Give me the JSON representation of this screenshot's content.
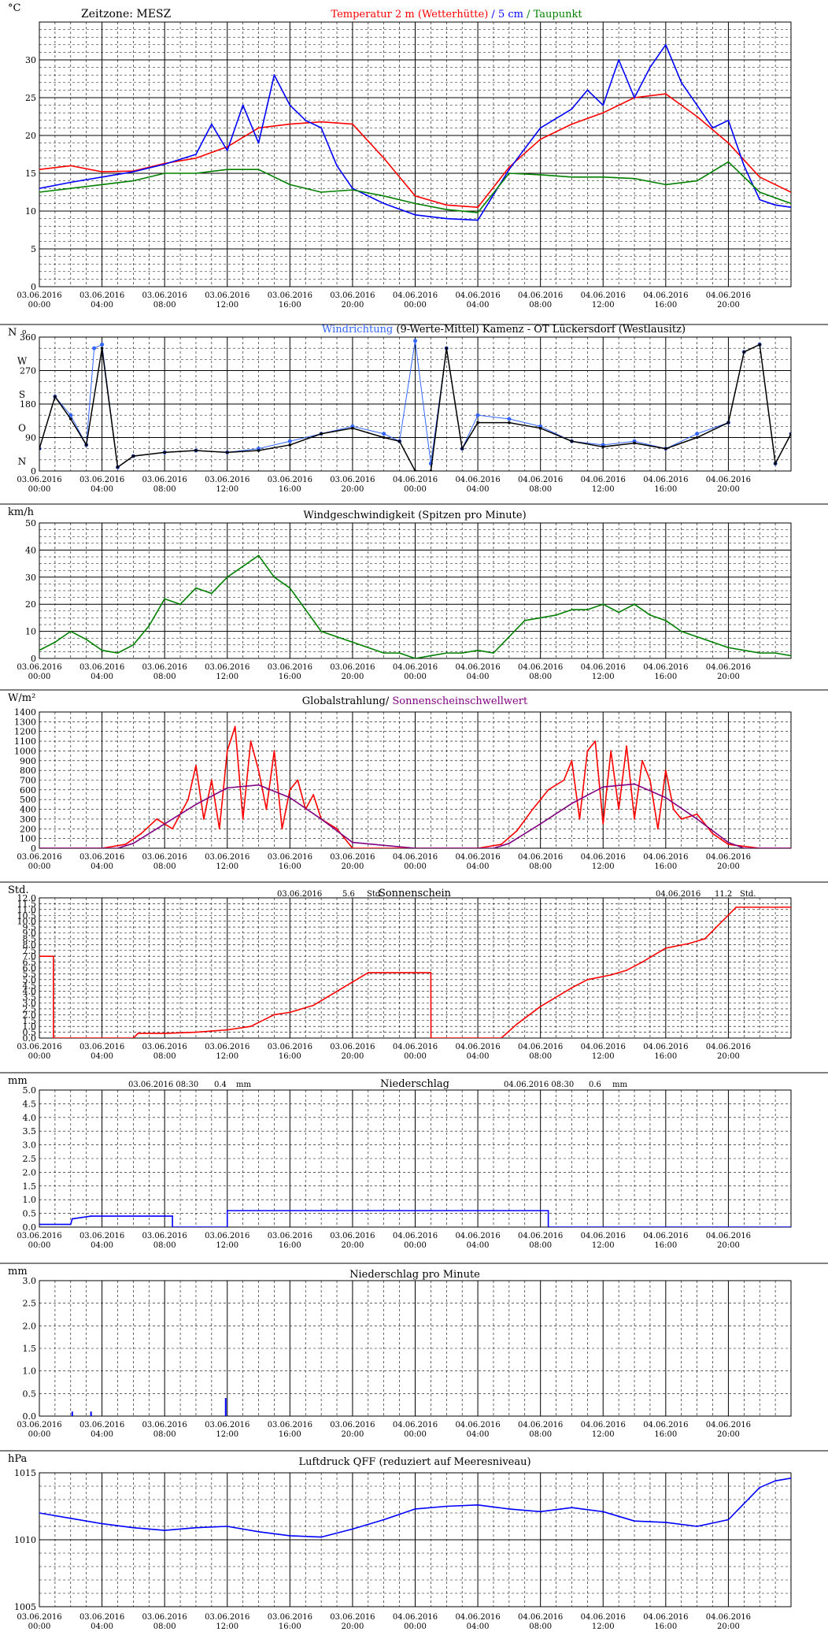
{
  "x_axis": {
    "dates": [
      "03.06.2016",
      "03.06.2016",
      "03.06.2016",
      "03.06.2016",
      "03.06.2016",
      "03.06.2016",
      "04.06.2016",
      "04.06.2016",
      "04.06.2016",
      "04.06.2016",
      "04.06.2016",
      "04.06.2016"
    ],
    "times": [
      "00:00",
      "04:00",
      "08:00",
      "12:00",
      "16:00",
      "20:00",
      "00:00",
      "04:00",
      "08:00",
      "12:00",
      "16:00",
      "20:00"
    ],
    "range_hours": [
      0,
      48
    ]
  },
  "panels": [
    {
      "id": "temperature",
      "unit": "°C",
      "header_left": "Zeitzone: MESZ",
      "title_parts": [
        {
          "text": "Temperatur 2 m (Wetterhütte)",
          "color": "#ff0000"
        },
        {
          "text": "  /  ",
          "color": "#0000ff"
        },
        {
          "text": "5 cm",
          "color": "#0000ff"
        },
        {
          "text": " / ",
          "color": "#008000"
        },
        {
          "text": "Taupunkt",
          "color": "#008000"
        }
      ]
    },
    {
      "id": "wind_direction",
      "unit": "N",
      "unit_suffix": "o",
      "title_parts": [
        {
          "text": "Windrichtung",
          "color": "#3366ff"
        },
        {
          "text": " (9-Werte-Mittel)",
          "color": "#000000"
        },
        {
          "text": "          Kamenz - OT Lückersdorf (Westlausitz)",
          "color": "#000000"
        }
      ],
      "compass_labels": [
        "W",
        "S",
        "O",
        "N"
      ]
    },
    {
      "id": "wind_speed",
      "unit": "km/h",
      "title_parts": [
        {
          "text": "Windgeschwindigkeit (Spitzen pro Minute)",
          "color": "#000000"
        }
      ]
    },
    {
      "id": "radiation",
      "unit": "W/m²",
      "title_parts": [
        {
          "text": "Globalstrahlung/ ",
          "color": "#000000"
        },
        {
          "text": "Sonnenscheinschwellwert",
          "color": "#800080"
        }
      ]
    },
    {
      "id": "sunshine",
      "unit": "Std.",
      "title_parts": [
        {
          "text": "Sonnenschein",
          "color": "#000000"
        }
      ],
      "day_totals": [
        {
          "date": "03.06.2016",
          "value": "5.6",
          "unit": "Std."
        },
        {
          "date": "04.06.2016",
          "value": "11.2",
          "unit": "Std."
        }
      ]
    },
    {
      "id": "precipitation",
      "unit": "mm",
      "title_parts": [
        {
          "text": "Niederschlag",
          "color": "#000000"
        }
      ],
      "day_totals": [
        {
          "date": "03.06.2016 08:30",
          "value": "0.4",
          "unit": "mm"
        },
        {
          "date": "04.06.2016 08:30",
          "value": "0.6",
          "unit": "mm"
        }
      ]
    },
    {
      "id": "precip_minute",
      "unit": "mm",
      "title_parts": [
        {
          "text": "Niederschlag pro Minute",
          "color": "#000000"
        }
      ]
    },
    {
      "id": "pressure",
      "unit": "hPa",
      "title_parts": [
        {
          "text": "Luftdruck QFF (reduziert auf Meeresniveau)",
          "color": "#000000"
        }
      ]
    }
  ],
  "chart_data": [
    {
      "type": "line",
      "title": "Temperatur 2 m (Wetterhütte) / 5 cm / Taupunkt",
      "ylabel": "°C",
      "ylim": [
        0,
        35
      ],
      "yticks": [
        0,
        5,
        10,
        15,
        20,
        25,
        30
      ],
      "grid": true,
      "series": [
        {
          "name": "Temperatur 2 m (Wetterhütte)",
          "color": "#ff0000",
          "x": [
            0,
            2,
            4,
            6,
            8,
            10,
            12,
            14,
            16,
            18,
            20,
            22,
            24,
            26,
            28,
            30,
            32,
            34,
            36,
            38,
            40,
            42,
            44,
            46,
            48
          ],
          "y": [
            15.5,
            16,
            15.2,
            15.3,
            16.3,
            17,
            18.5,
            21,
            21.5,
            21.8,
            21.5,
            17,
            12,
            10.8,
            10.5,
            15.8,
            19.5,
            21.5,
            23,
            25,
            25.5,
            22.5,
            19,
            14.5,
            12.5
          ]
        },
        {
          "name": "5 cm",
          "color": "#0000ff",
          "x": [
            0,
            2,
            4,
            6,
            8,
            10,
            11,
            12,
            13,
            14,
            15,
            16,
            17,
            18,
            19,
            20,
            22,
            24,
            26,
            28,
            30,
            32,
            34,
            35,
            36,
            37,
            38,
            39,
            40,
            41,
            42,
            43,
            44,
            45,
            46,
            47,
            48
          ],
          "y": [
            13,
            13.8,
            14.5,
            15.2,
            16.2,
            17.5,
            21.5,
            18,
            24,
            19,
            28,
            24,
            22,
            21,
            16,
            13,
            11,
            9.5,
            9,
            8.8,
            15.5,
            21,
            23.5,
            26,
            24,
            30,
            25,
            29,
            32,
            27,
            24,
            21,
            22,
            16,
            11.5,
            10.8,
            10.5
          ]
        },
        {
          "name": "Taupunkt",
          "color": "#008000",
          "x": [
            0,
            2,
            4,
            6,
            8,
            10,
            12,
            14,
            16,
            18,
            20,
            22,
            24,
            26,
            28,
            30,
            32,
            34,
            36,
            38,
            40,
            42,
            44,
            46,
            48
          ],
          "y": [
            12.5,
            13,
            13.5,
            14,
            15,
            15,
            15.5,
            15.5,
            13.5,
            12.5,
            12.8,
            12,
            11,
            10.2,
            9.8,
            15,
            14.8,
            14.5,
            14.5,
            14.3,
            13.5,
            14,
            16.5,
            12.5,
            11
          ]
        }
      ]
    },
    {
      "type": "scatter",
      "title": "Windrichtung (9-Werte-Mittel)",
      "ylabel": "N",
      "ylim": [
        0,
        360
      ],
      "yticks": [
        0,
        90,
        180,
        270,
        360
      ],
      "grid": true,
      "series": [
        {
          "name": "Windrichtung",
          "color": "#3366ff",
          "x": [
            0,
            1,
            2,
            3,
            3.5,
            4,
            5,
            6,
            8,
            10,
            12,
            14,
            16,
            18,
            20,
            22,
            23,
            24,
            25,
            26,
            27,
            28,
            30,
            32,
            34,
            36,
            38,
            40,
            42,
            44,
            45,
            46,
            47,
            48
          ],
          "y": [
            60,
            200,
            150,
            70,
            330,
            340,
            10,
            40,
            50,
            55,
            50,
            60,
            80,
            100,
            120,
            100,
            80,
            350,
            20,
            330,
            60,
            150,
            140,
            120,
            80,
            70,
            80,
            60,
            100,
            130,
            320,
            340,
            20,
            100
          ]
        },
        {
          "name": "9-Werte-Mittel",
          "color": "#000000",
          "x": [
            0,
            1,
            2,
            3,
            4,
            5,
            6,
            8,
            10,
            12,
            14,
            16,
            18,
            20,
            22,
            23,
            24,
            25,
            26,
            27,
            28,
            30,
            32,
            34,
            36,
            38,
            40,
            42,
            44,
            45,
            46,
            47,
            48
          ],
          "y": [
            60,
            200,
            140,
            70,
            330,
            10,
            40,
            50,
            55,
            50,
            55,
            70,
            100,
            115,
            90,
            80,
            0,
            0,
            330,
            60,
            130,
            130,
            115,
            80,
            65,
            75,
            60,
            90,
            130,
            320,
            340,
            20,
            100
          ]
        }
      ]
    },
    {
      "type": "line",
      "title": "Windgeschwindigkeit (Spitzen pro Minute)",
      "ylabel": "km/h",
      "ylim": [
        0,
        50
      ],
      "yticks": [
        0,
        10,
        20,
        30,
        40,
        50
      ],
      "grid": true,
      "series": [
        {
          "name": "Windgeschwindigkeit",
          "color": "#008000",
          "x": [
            0,
            1,
            2,
            3,
            4,
            5,
            6,
            7,
            8,
            9,
            10,
            11,
            12,
            13,
            14,
            15,
            16,
            17,
            18,
            19,
            20,
            21,
            22,
            23,
            24,
            25,
            26,
            27,
            28,
            29,
            30,
            31,
            32,
            33,
            34,
            35,
            36,
            37,
            38,
            39,
            40,
            41,
            42,
            43,
            44,
            45,
            46,
            47,
            48
          ],
          "y": [
            3,
            6,
            10,
            7,
            3,
            2,
            5,
            12,
            22,
            20,
            26,
            24,
            30,
            34,
            38,
            30,
            26,
            18,
            10,
            8,
            6,
            4,
            2,
            2,
            0,
            1,
            2,
            2,
            3,
            2,
            8,
            14,
            15,
            16,
            18,
            18,
            20,
            17,
            20,
            16,
            14,
            10,
            8,
            6,
            4,
            3,
            2,
            2,
            1
          ]
        }
      ]
    },
    {
      "type": "line",
      "title": "Globalstrahlung/ Sonnenscheinschwellwert",
      "ylabel": "W/m²",
      "ylim": [
        0,
        1400
      ],
      "yticks": [
        0,
        100,
        200,
        300,
        400,
        500,
        600,
        700,
        800,
        900,
        1000,
        1100,
        1200,
        1300,
        1400
      ],
      "grid": true,
      "series": [
        {
          "name": "Globalstrahlung",
          "color": "#ff0000",
          "x": [
            0,
            4,
            5.5,
            6.5,
            7.5,
            8.5,
            9.5,
            10,
            10.5,
            11,
            11.5,
            12,
            12.5,
            13,
            13.5,
            14,
            14.5,
            15,
            15.5,
            16,
            16.5,
            17,
            17.5,
            18,
            19,
            20,
            24,
            28,
            29.5,
            30.5,
            31.5,
            32.5,
            33.5,
            34,
            34.5,
            35,
            35.5,
            36,
            36.5,
            37,
            37.5,
            38,
            38.5,
            39,
            39.5,
            40,
            40.5,
            41,
            42,
            43,
            44,
            46,
            48
          ],
          "y": [
            0,
            0,
            40,
            150,
            300,
            200,
            500,
            850,
            300,
            700,
            200,
            1000,
            1250,
            300,
            1100,
            800,
            400,
            1000,
            200,
            600,
            700,
            400,
            550,
            300,
            200,
            0,
            0,
            0,
            40,
            180,
            400,
            600,
            700,
            900,
            300,
            1000,
            1100,
            250,
            1000,
            400,
            1050,
            300,
            900,
            700,
            200,
            800,
            400,
            300,
            350,
            150,
            40,
            0,
            0
          ]
        },
        {
          "name": "Sonnenscheinschwellwert",
          "color": "#800080",
          "x": [
            0,
            5,
            6,
            8,
            10,
            12,
            14,
            16,
            18,
            20,
            24,
            29,
            30,
            32,
            34,
            36,
            38,
            40,
            42,
            44,
            45,
            48
          ],
          "y": [
            0,
            0,
            50,
            250,
            450,
            620,
            650,
            520,
            300,
            60,
            0,
            0,
            50,
            250,
            460,
            630,
            660,
            520,
            300,
            60,
            0,
            0
          ]
        }
      ]
    },
    {
      "type": "line",
      "title": "Sonnenschein",
      "ylabel": "Std.",
      "ylim": [
        0,
        12
      ],
      "yticks": [
        0,
        0.5,
        1,
        1.5,
        2,
        2.5,
        3,
        3.5,
        4,
        4.5,
        5,
        5.5,
        6,
        6.5,
        7,
        7.5,
        8,
        8.5,
        9,
        9.5,
        10,
        10.5,
        11,
        11.5,
        12
      ],
      "grid": true,
      "series": [
        {
          "name": "Sonnenschein",
          "color": "#ff0000",
          "x": [
            0,
            0.9,
            0.9,
            6,
            6.3,
            8,
            10,
            11,
            12,
            13.5,
            15,
            16,
            17.5,
            19,
            20,
            21,
            22,
            24,
            25,
            25.01,
            29.5,
            30.5,
            32,
            34,
            35,
            36.5,
            37.5,
            38.5,
            40,
            41.5,
            42.5,
            44.5,
            48
          ],
          "y": [
            7,
            7,
            0,
            0,
            0.4,
            0.4,
            0.5,
            0.6,
            0.7,
            1,
            2,
            2.2,
            2.8,
            4,
            4.8,
            5.6,
            5.6,
            5.6,
            5.6,
            0,
            0,
            1.2,
            2.7,
            4.3,
            5,
            5.4,
            5.8,
            6.5,
            7.7,
            8.1,
            8.5,
            11.2,
            11.2
          ]
        }
      ]
    },
    {
      "type": "line",
      "title": "Niederschlag",
      "ylabel": "mm",
      "ylim": [
        0,
        5
      ],
      "yticks": [
        0,
        0.5,
        1,
        1.5,
        2,
        2.5,
        3,
        3.5,
        4,
        4.5,
        5
      ],
      "grid": true,
      "series": [
        {
          "name": "Niederschlag",
          "color": "#0000ff",
          "x": [
            0,
            2,
            2.1,
            3.3,
            8.5,
            8.5,
            12,
            12,
            32.5,
            32.5,
            48
          ],
          "y": [
            0.1,
            0.1,
            0.3,
            0.4,
            0.4,
            0,
            0,
            0.6,
            0.6,
            0,
            0
          ]
        }
      ]
    },
    {
      "type": "bar",
      "title": "Niederschlag pro Minute",
      "ylabel": "mm",
      "ylim": [
        0,
        3
      ],
      "yticks": [
        0,
        0.5,
        1,
        1.5,
        2,
        2.5,
        3
      ],
      "grid": true,
      "series": [
        {
          "name": "Niederschlag pro Minute",
          "color": "#0000ff",
          "x": [
            2.1,
            3.3,
            11.9
          ],
          "y": [
            0.1,
            0.1,
            0.4
          ]
        }
      ]
    },
    {
      "type": "line",
      "title": "Luftdruck QFF (reduziert auf Meeresniveau)",
      "ylabel": "hPa",
      "ylim": [
        1005,
        1015
      ],
      "yticks": [
        1005,
        1010,
        1015
      ],
      "grid": true,
      "series": [
        {
          "name": "Luftdruck QFF",
          "color": "#0000ff",
          "x": [
            0,
            2,
            4,
            6,
            8,
            10,
            12,
            14,
            16,
            18,
            20,
            22,
            24,
            26,
            28,
            30,
            32,
            34,
            36,
            38,
            40,
            42,
            44,
            45,
            46,
            47,
            48
          ],
          "y": [
            1012,
            1011.6,
            1011.2,
            1010.9,
            1010.7,
            1010.9,
            1011,
            1010.6,
            1010.3,
            1010.2,
            1010.8,
            1011.5,
            1012.3,
            1012.5,
            1012.6,
            1012.3,
            1012.1,
            1012.4,
            1012.1,
            1011.4,
            1011.3,
            1011.0,
            1011.5,
            1012.7,
            1013.9,
            1014.4,
            1014.6
          ]
        }
      ]
    }
  ]
}
